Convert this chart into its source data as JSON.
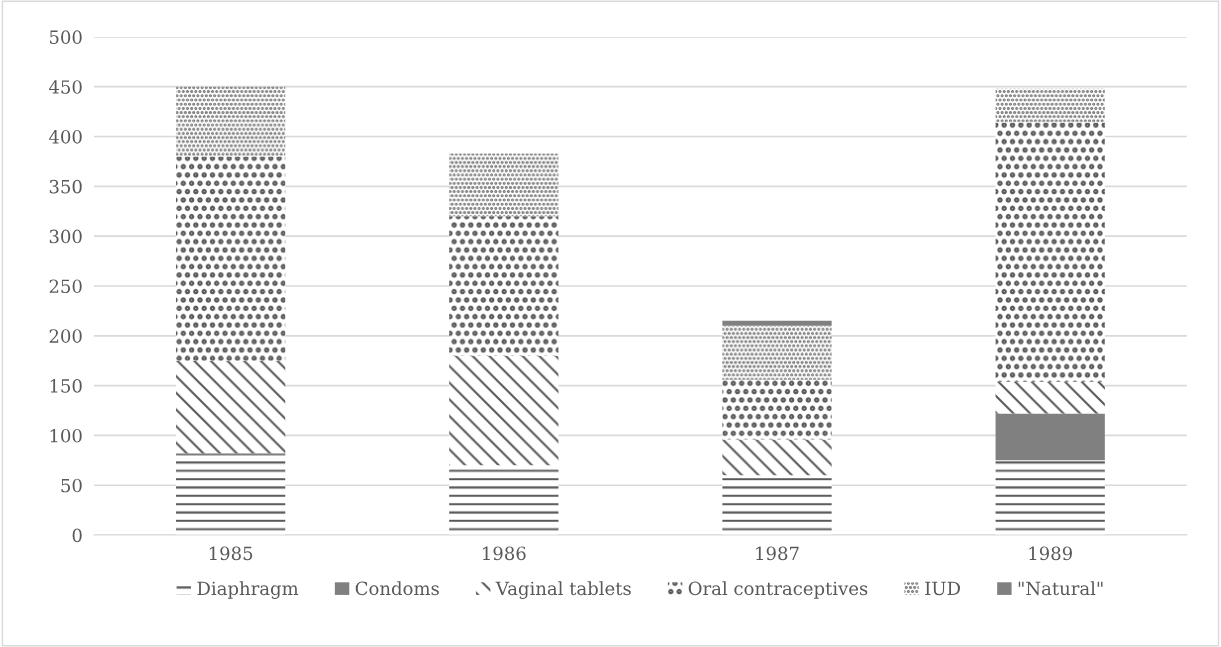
{
  "chart_data": {
    "type": "bar",
    "stacked": true,
    "categories": [
      "1985",
      "1986",
      "1987",
      "1989"
    ],
    "series": [
      {
        "name": "Diaphragm",
        "color": "#595959",
        "values": [
          80,
          70,
          60,
          75
        ]
      },
      {
        "name": "Condoms",
        "color": "#808080",
        "values": [
          2,
          0,
          0,
          47
        ]
      },
      {
        "name": "Vaginal tablets",
        "color": "#595959",
        "values": [
          93,
          110,
          36,
          32
        ]
      },
      {
        "name": "Oral contraceptives",
        "color": "#595959",
        "values": [
          205,
          140,
          60,
          260
        ]
      },
      {
        "name": "IUD",
        "color": "#595959",
        "values": [
          70,
          63,
          54,
          34
        ]
      },
      {
        "name": "\"Natural\"",
        "color": "#808080",
        "values": [
          0,
          0,
          5,
          0
        ]
      }
    ],
    "ylim": [
      0,
      500
    ],
    "yticks": [
      0,
      50,
      100,
      150,
      200,
      250,
      300,
      350,
      400,
      450,
      500
    ],
    "grid": "y",
    "legend": "bottom"
  }
}
